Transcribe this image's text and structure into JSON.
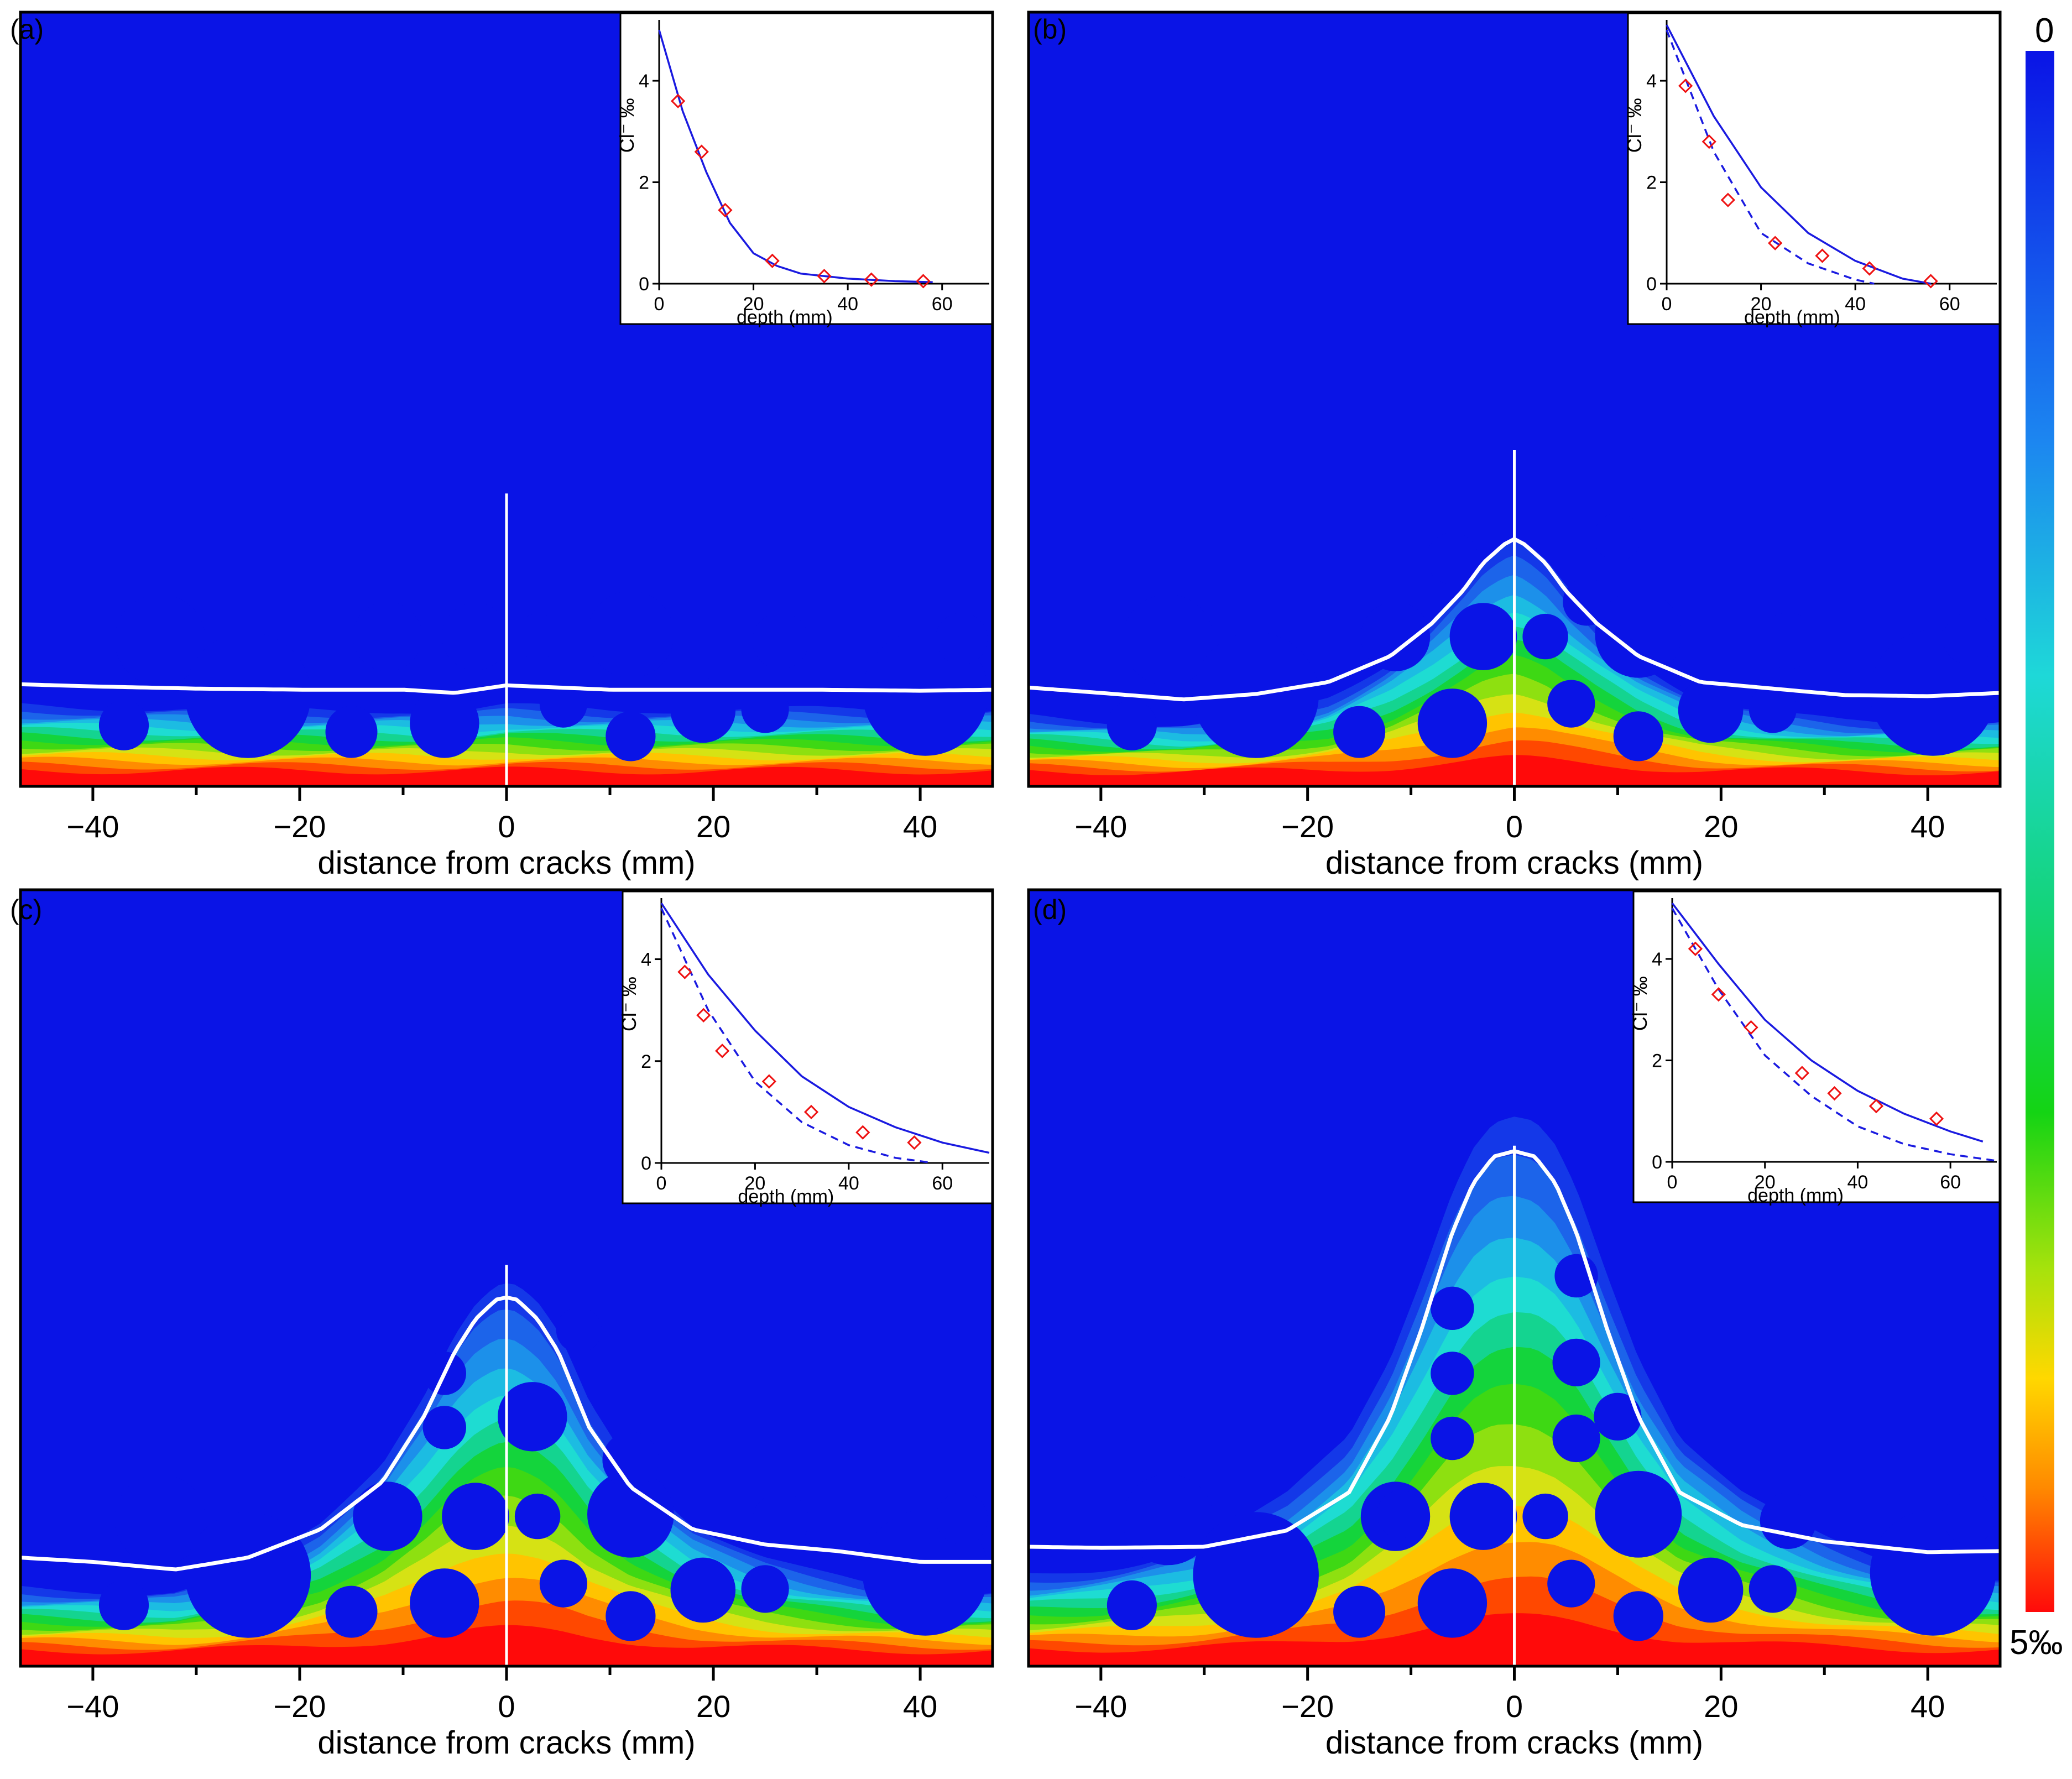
{
  "figure": {
    "colorbar": {
      "min_label": "0",
      "max_label": "5‰",
      "range": [
        0,
        5
      ],
      "unit": "‰"
    }
  },
  "chart_data": [
    {
      "panel": "(a)",
      "type": "contour",
      "title": "",
      "xlabel": "distance from cracks  (mm)",
      "xlim": [
        -47,
        47
      ],
      "xticks": [
        -40,
        -20,
        0,
        20,
        40
      ],
      "field": {
        "crack_length_mm": 26,
        "peak": {
          "x": 0,
          "height": 0
        },
        "front_base_y": 0
      },
      "front": {
        "x": [
          -47,
          -40,
          -30,
          -20,
          -10,
          -5,
          0,
          5,
          10,
          20,
          30,
          40,
          47
        ],
        "y": [
          8.4,
          8.2,
          8.0,
          7.9,
          7.9,
          7.6,
          8.3,
          8.1,
          7.9,
          7.9,
          7.9,
          7.8,
          7.9
        ]
      },
      "inset": {
        "xlabel": "depth (mm)",
        "ylabel": "Cl⁻ ‰",
        "xlim": [
          0,
          70
        ],
        "ylim": [
          0,
          5.2
        ],
        "xticks": [
          0,
          20,
          40,
          60
        ],
        "yticks": [
          0,
          2,
          4
        ],
        "solid": {
          "x": [
            0,
            5,
            10,
            15,
            20,
            25,
            30,
            40,
            50,
            58
          ],
          "y": [
            5.0,
            3.4,
            2.2,
            1.2,
            0.6,
            0.35,
            0.2,
            0.1,
            0.05,
            0.03
          ]
        },
        "dashed": {
          "x": [],
          "y": []
        },
        "measured": {
          "x": [
            4,
            9,
            14,
            24,
            35,
            45,
            56
          ],
          "y": [
            3.6,
            2.6,
            1.45,
            0.45,
            0.15,
            0.08,
            0.05
          ]
        }
      }
    },
    {
      "panel": "(b)",
      "type": "contour",
      "title": "",
      "xlabel": "distance from cracks  (mm)",
      "xlim": [
        -47,
        47
      ],
      "xticks": [
        -40,
        -20,
        0,
        20,
        40
      ],
      "field": {
        "crack_length_mm": 30,
        "peak": {
          "x": 0,
          "height": 10
        },
        "front_base_y": 1
      },
      "front": {
        "x": [
          -47,
          -40,
          -32,
          -25,
          -18,
          -12,
          -8,
          -5,
          -3,
          -1,
          0,
          1,
          3,
          5,
          8,
          12,
          18,
          25,
          32,
          40,
          47
        ],
        "y": [
          8.1,
          7.6,
          7.0,
          7.5,
          8.6,
          11,
          14,
          17,
          19.6,
          21.3,
          21.8,
          21.3,
          19.6,
          17,
          14,
          11,
          8.6,
          8.0,
          7.4,
          7.3,
          7.6
        ]
      },
      "inset": {
        "xlabel": "depth (mm)",
        "ylabel": "Cl⁻ ‰",
        "xlim": [
          0,
          70
        ],
        "ylim": [
          0,
          5.2
        ],
        "xticks": [
          0,
          20,
          40,
          60
        ],
        "yticks": [
          0,
          2,
          4
        ],
        "solid": {
          "x": [
            0,
            10,
            20,
            30,
            40,
            50,
            56
          ],
          "y": [
            5.1,
            3.3,
            1.9,
            1.0,
            0.45,
            0.1,
            0.0
          ]
        },
        "dashed": {
          "x": [
            0,
            10,
            20,
            30,
            40,
            44
          ],
          "y": [
            5.0,
            2.6,
            1.0,
            0.4,
            0.08,
            0.0
          ]
        },
        "measured": {
          "x": [
            4,
            9,
            13,
            23,
            33,
            43,
            56
          ],
          "y": [
            3.9,
            2.8,
            1.65,
            0.8,
            0.55,
            0.3,
            0.05
          ]
        }
      }
    },
    {
      "panel": "(c)",
      "type": "contour",
      "title": "",
      "xlabel": "distance from cracks  (mm)",
      "xlim": [
        -47,
        47
      ],
      "xticks": [
        -40,
        -20,
        0,
        20,
        40
      ],
      "field": {
        "crack_length_mm": 36,
        "peak": {
          "x": 0,
          "height": 17
        },
        "front_base_y": 1
      },
      "front": {
        "x": [
          -47,
          -40,
          -32,
          -25,
          -18,
          -12,
          -8,
          -5,
          -3,
          -1,
          0,
          1,
          3,
          5,
          8,
          12,
          18,
          25,
          32,
          40,
          47
        ],
        "y": [
          9.0,
          8.6,
          7.9,
          9.0,
          11.6,
          16,
          22,
          28,
          31,
          32.8,
          33.0,
          32.8,
          31,
          28,
          21,
          15.5,
          11.6,
          10.2,
          9.6,
          8.6,
          8.6
        ]
      },
      "inset": {
        "xlabel": "depth (mm)",
        "ylabel": "Cl⁻ ‰",
        "xlim": [
          0,
          70
        ],
        "ylim": [
          0,
          5.2
        ],
        "xticks": [
          0,
          20,
          40,
          60
        ],
        "yticks": [
          0,
          2,
          4
        ],
        "solid": {
          "x": [
            0,
            10,
            20,
            30,
            40,
            50,
            60,
            70
          ],
          "y": [
            5.1,
            3.7,
            2.6,
            1.7,
            1.1,
            0.7,
            0.4,
            0.2
          ]
        },
        "dashed": {
          "x": [
            0,
            10,
            20,
            30,
            40,
            50,
            58
          ],
          "y": [
            5.0,
            3.0,
            1.6,
            0.8,
            0.35,
            0.1,
            0.0
          ]
        },
        "measured": {
          "x": [
            5,
            9,
            13,
            23,
            32,
            43,
            54
          ],
          "y": [
            3.75,
            2.9,
            2.2,
            1.6,
            1.0,
            0.6,
            0.4
          ]
        }
      }
    },
    {
      "panel": "(d)",
      "type": "contour",
      "title": "",
      "xlabel": "distance from cracks  (mm)",
      "xlim": [
        -47,
        47
      ],
      "xticks": [
        -40,
        -20,
        0,
        20,
        40
      ],
      "field": {
        "crack_length_mm": 47,
        "peak": {
          "x": 0,
          "height": 26
        },
        "front_base_y": 1
      },
      "front": {
        "x": [
          -47,
          -40,
          -30,
          -22,
          -16,
          -12,
          -9,
          -6,
          -4,
          -2,
          0,
          2,
          4,
          6,
          9,
          12,
          16,
          22,
          30,
          40,
          47
        ],
        "y": [
          10.0,
          9.9,
          10.0,
          11.5,
          15,
          22,
          30,
          39,
          43.5,
          46,
          46.5,
          46,
          43.5,
          39,
          30,
          22,
          15,
          12,
          10.5,
          9.5,
          9.6
        ]
      },
      "inset": {
        "xlabel": "depth (mm)",
        "ylabel": "Cl⁻ ‰",
        "xlim": [
          0,
          70
        ],
        "ylim": [
          0,
          5.2
        ],
        "xticks": [
          0,
          20,
          40,
          60
        ],
        "yticks": [
          0,
          2,
          4
        ],
        "solid": {
          "x": [
            0,
            10,
            20,
            30,
            40,
            50,
            60,
            67
          ],
          "y": [
            5.1,
            3.9,
            2.8,
            2.0,
            1.4,
            0.95,
            0.6,
            0.4
          ]
        },
        "dashed": {
          "x": [
            0,
            10,
            20,
            30,
            40,
            50,
            60,
            70
          ],
          "y": [
            5.0,
            3.4,
            2.1,
            1.3,
            0.7,
            0.35,
            0.15,
            0.02
          ]
        },
        "measured": {
          "x": [
            5,
            10,
            17,
            28,
            35,
            44,
            57
          ],
          "y": [
            4.2,
            3.3,
            2.65,
            1.75,
            1.35,
            1.1,
            0.85
          ]
        }
      }
    }
  ]
}
